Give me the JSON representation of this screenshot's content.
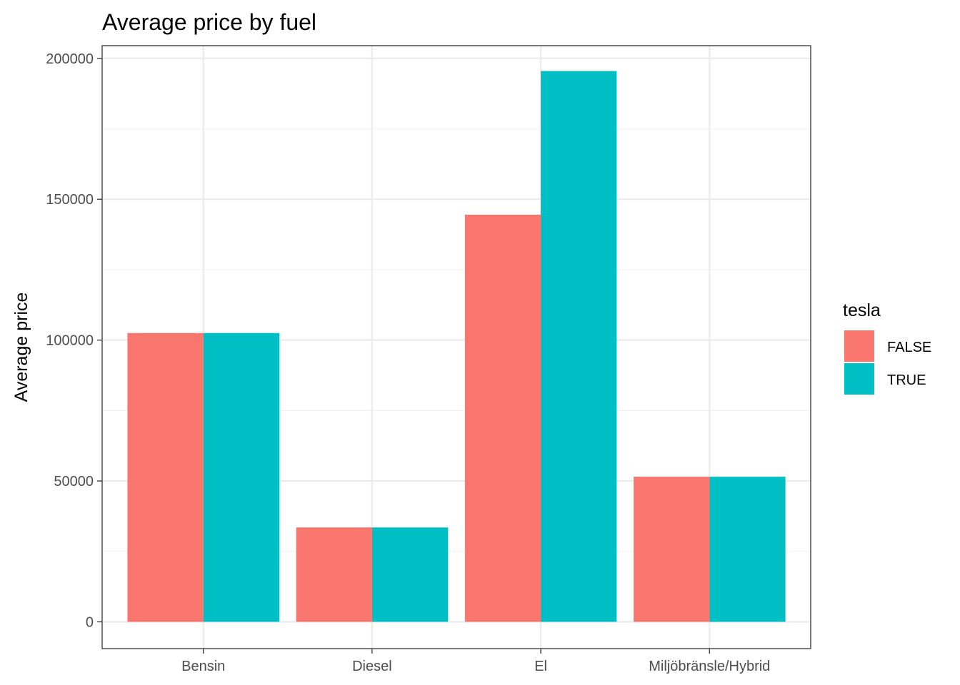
{
  "chart_data": {
    "type": "bar",
    "title": "Average price by fuel",
    "xlabel": "",
    "ylabel": "Average price",
    "categories": [
      "Bensin",
      "Diesel",
      "El",
      "Miljöbränsle/Hybrid"
    ],
    "series": [
      {
        "name": "FALSE",
        "color": "#F8766D",
        "values": [
          102500,
          33500,
          144500,
          51500
        ]
      },
      {
        "name": "TRUE",
        "color": "#00BFC4",
        "values": [
          102500,
          33500,
          195500,
          51500
        ]
      }
    ],
    "ylim": [
      -9500,
      204500
    ],
    "yticks": [
      0,
      50000,
      100000,
      150000,
      200000
    ],
    "ytick_labels": [
      "0",
      "50000",
      "100000",
      "150000",
      "200000"
    ],
    "legend": {
      "title": "tesla",
      "position": "right"
    },
    "grid": true,
    "theme": "bw"
  }
}
